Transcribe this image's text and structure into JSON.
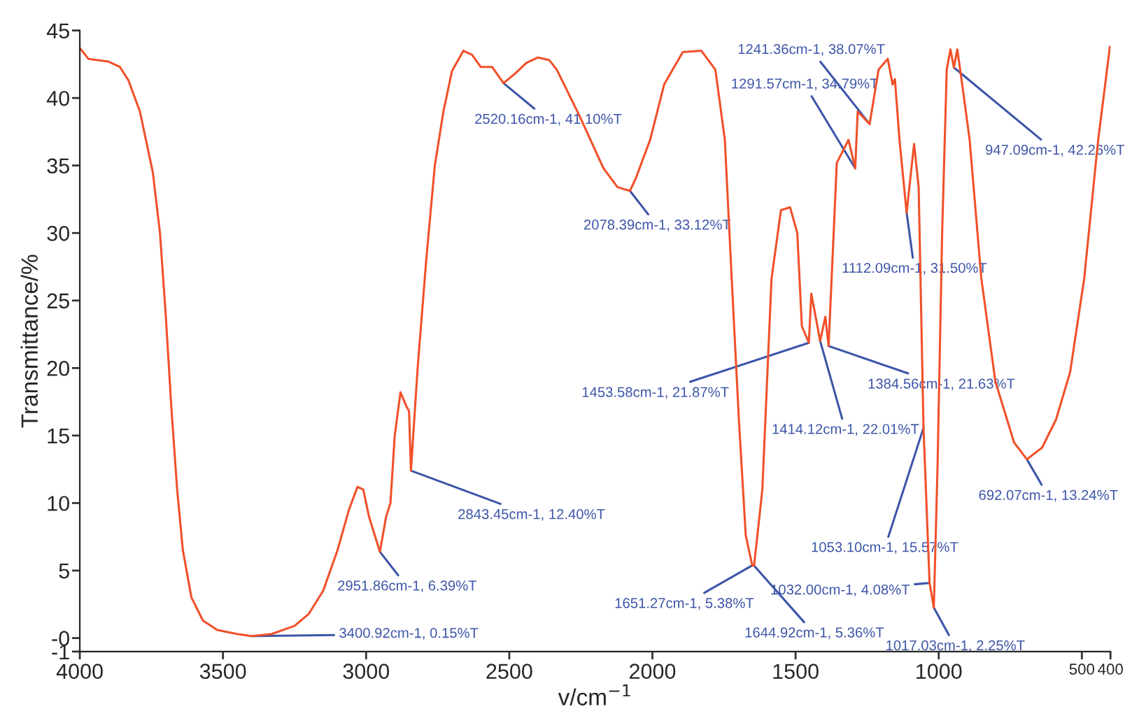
{
  "chart_data": {
    "type": "line",
    "xlabel": "v/cm$^{−1}$",
    "ylabel": "Transmittance/%",
    "xlim": [
      4000,
      400
    ],
    "xticks": [
      4000,
      3500,
      3000,
      2500,
      2000,
      1500,
      1000,
      500,
      400
    ],
    "ylim": [
      -1,
      45
    ],
    "yticks": [
      45,
      40,
      35,
      30,
      25,
      20,
      15,
      10,
      5,
      {
        "value": 0,
        "label": "-0"
      },
      -1
    ],
    "grid": false,
    "legend": false,
    "marker": "none",
    "line_style": "solid",
    "series": [
      {
        "color": "#f0502a",
        "x": [
          4000,
          3970,
          3900,
          3860,
          3830,
          3790,
          3745,
          3720,
          3700,
          3680,
          3660,
          3640,
          3610,
          3570,
          3520,
          3450,
          3400.92,
          3330,
          3250,
          3200,
          3150,
          3100,
          3060,
          3030,
          3010,
          2990,
          2951.86,
          2930,
          2915,
          2900,
          2880,
          2860,
          2850,
          2843.45,
          2820,
          2790,
          2760,
          2730,
          2700,
          2660,
          2630,
          2600,
          2560,
          2520.16,
          2480,
          2440,
          2400,
          2360,
          2334,
          2253,
          2171,
          2122,
          2078.39,
          2057,
          2008,
          1959,
          1894,
          1829,
          1780,
          1747,
          1723,
          1698,
          1674,
          1651.27,
          1644.92,
          1616,
          1584,
          1551,
          1519,
          1494,
          1478,
          1453.58,
          1445,
          1414.12,
          1396,
          1384.56,
          1356,
          1315,
          1291.57,
          1283,
          1241.36,
          1210,
          1178,
          1161,
          1153,
          1137,
          1112.09,
          1086,
          1070,
          1053.1,
          1032.0,
          1017.03,
          1004,
          988,
          972,
          959,
          947.09,
          935,
          916,
          892,
          851,
          802,
          737,
          692.07,
          639,
          590,
          541,
          492,
          443,
          402
        ],
        "values": [
          43.7,
          42.9,
          42.7,
          42.3,
          41.3,
          39.0,
          34.5,
          30,
          24,
          17,
          11,
          6.5,
          3,
          1.3,
          0.6,
          0.3,
          0.15,
          0.3,
          0.9,
          1.8,
          3.5,
          6.5,
          9.5,
          11.2,
          11.0,
          9.0,
          6.39,
          9.0,
          10,
          15,
          18.2,
          17.2,
          16.8,
          12.4,
          20,
          28,
          35,
          39,
          42,
          43.5,
          43.2,
          42.3,
          42.3,
          41.1,
          41.8,
          42.6,
          43.0,
          42.8,
          42.1,
          38.6,
          34.8,
          33.4,
          33.12,
          34.1,
          36.9,
          41.0,
          43.4,
          43.5,
          42.1,
          36.9,
          26.6,
          16.2,
          7.6,
          5.38,
          5.36,
          11.0,
          26.6,
          31.7,
          31.9,
          30.0,
          23.1,
          21.87,
          25.5,
          22.01,
          23.8,
          21.63,
          35.2,
          36.9,
          34.79,
          39.0,
          38.07,
          42.1,
          42.9,
          41.0,
          41.4,
          36.9,
          31.5,
          36.6,
          33.4,
          15.57,
          4.08,
          2.25,
          12.8,
          30,
          42.1,
          43.6,
          42.26,
          43.6,
          40.7,
          36.9,
          26.6,
          19.0,
          14.5,
          13.24,
          14.1,
          16.2,
          19.7,
          26.6,
          36.9,
          43.8
        ]
      }
    ],
    "annotations": [
      {
        "text": "3400.92cm-1, 0.15%T",
        "x": 3400.92,
        "y": 0.15
      },
      {
        "text": "2951.86cm-1, 6.39%T",
        "x": 2951.86,
        "y": 6.39
      },
      {
        "text": "2843.45cm-1, 12.40%T",
        "x": 2843.45,
        "y": 12.4
      },
      {
        "text": "2520.16cm-1, 41.10%T",
        "x": 2520.16,
        "y": 41.1
      },
      {
        "text": "2078.39cm-1, 33.12%T",
        "x": 2078.39,
        "y": 33.12
      },
      {
        "text": "1651.27cm-1, 5.38%T",
        "x": 1651.27,
        "y": 5.38
      },
      {
        "text": "1644.92cm-1, 5.36%T",
        "x": 1644.92,
        "y": 5.36
      },
      {
        "text": "1453.58cm-1, 21.87%T",
        "x": 1453.58,
        "y": 21.87
      },
      {
        "text": "1414.12cm-1, 22.01%T",
        "x": 1414.12,
        "y": 22.01
      },
      {
        "text": "1384.56cm-1, 21.63%T",
        "x": 1384.56,
        "y": 21.63
      },
      {
        "text": "1291.57cm-1, 34.79%T",
        "x": 1291.57,
        "y": 34.79
      },
      {
        "text": "1241.36cm-1, 38.07%T",
        "x": 1241.36,
        "y": 38.07
      },
      {
        "text": "1112.09cm-1, 31.50%T",
        "x": 1112.09,
        "y": 31.5
      },
      {
        "text": "1053.10cm-1, 15.57%T",
        "x": 1053.1,
        "y": 15.57
      },
      {
        "text": "1032.00cm-1, 4.08%T",
        "x": 1032.0,
        "y": 4.08
      },
      {
        "text": "1017.03cm-1, 2.25%T",
        "x": 1017.03,
        "y": 2.25
      },
      {
        "text": "947.09cm-1, 42.26%T",
        "x": 947.09,
        "y": 42.26
      },
      {
        "text": "692.07cm-1, 13.24%T",
        "x": 692.07,
        "y": 13.24
      }
    ]
  }
}
